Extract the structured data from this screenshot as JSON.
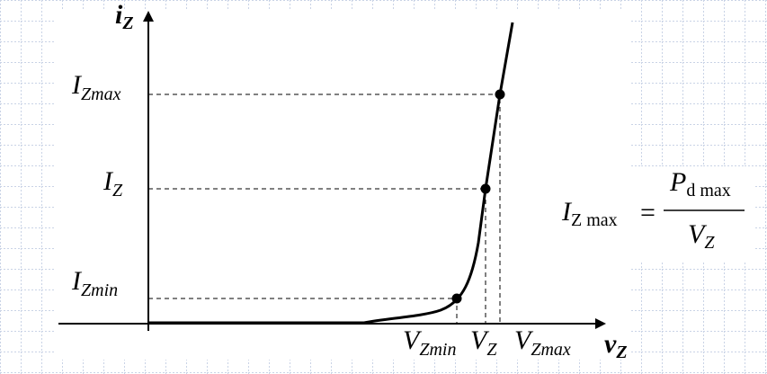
{
  "axes": {
    "y_label": {
      "main": "i",
      "sub": "Z"
    },
    "x_label": {
      "main": "v",
      "sub": "Z"
    }
  },
  "y_labels": [
    {
      "main": "I",
      "sub": "Zmax"
    },
    {
      "main": "I",
      "sub": "Z"
    },
    {
      "main": "I",
      "sub": "Zmin"
    }
  ],
  "x_labels": [
    {
      "main": "V",
      "sub": "Zmin"
    },
    {
      "main": "V",
      "sub": "Z"
    },
    {
      "main": "V",
      "sub": "Zmax"
    }
  ],
  "formula": {
    "lhs": {
      "main": "I",
      "sub": "Z max"
    },
    "eq": "=",
    "numerator": {
      "main": "P",
      "sub": "d max"
    },
    "denominator": {
      "main": "V",
      "sub": "Z"
    }
  }
}
